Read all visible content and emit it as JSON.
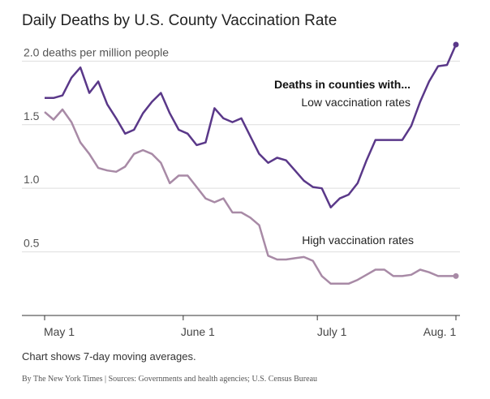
{
  "chart_data": {
    "type": "line",
    "title": "Daily Deaths by U.S. County Vaccination Rate",
    "annotation": "Deaths in counties with...",
    "note": "Chart shows 7-day moving averages.",
    "source": "By The New York Times | Sources: Governments and health agencies; U.S. Census Bureau",
    "x": [
      0,
      2,
      4,
      6,
      8,
      10,
      12,
      14,
      16,
      18,
      20,
      22,
      24,
      26,
      28,
      30,
      32,
      34,
      36,
      38,
      40,
      42,
      44,
      46,
      48,
      50,
      52,
      54,
      56,
      58,
      60,
      62,
      64,
      66,
      68,
      70,
      72,
      74,
      76,
      78,
      80,
      82,
      84,
      86,
      88,
      90,
      92
    ],
    "series": [
      {
        "name": "Low vaccination rates",
        "color": "#5a3889",
        "values": [
          1.71,
          1.71,
          1.73,
          1.87,
          1.95,
          1.75,
          1.84,
          1.66,
          1.55,
          1.43,
          1.46,
          1.59,
          1.68,
          1.75,
          1.59,
          1.46,
          1.43,
          1.34,
          1.36,
          1.63,
          1.55,
          1.52,
          1.55,
          1.41,
          1.27,
          1.2,
          1.24,
          1.22,
          1.14,
          1.06,
          1.01,
          1.0,
          0.85,
          0.92,
          0.95,
          1.04,
          1.22,
          1.38,
          1.38,
          1.38,
          1.38,
          1.49,
          1.68,
          1.84,
          1.96,
          1.97,
          2.13
        ]
      },
      {
        "name": "High vaccination rates",
        "color": "#a88aa6",
        "values": [
          1.6,
          1.54,
          1.62,
          1.52,
          1.36,
          1.27,
          1.16,
          1.14,
          1.13,
          1.17,
          1.27,
          1.3,
          1.27,
          1.2,
          1.04,
          1.1,
          1.1,
          1.01,
          0.92,
          0.89,
          0.92,
          0.81,
          0.81,
          0.77,
          0.71,
          0.47,
          0.44,
          0.44,
          0.45,
          0.46,
          0.43,
          0.31,
          0.25,
          0.25,
          0.25,
          0.28,
          0.32,
          0.36,
          0.36,
          0.31,
          0.31,
          0.32,
          0.36,
          0.34,
          0.31,
          0.31,
          0.31
        ]
      }
    ],
    "xlim": [
      0,
      92
    ],
    "xticks": [
      {
        "value": 0,
        "label": "May 1"
      },
      {
        "value": 31,
        "label": "June 1"
      },
      {
        "value": 61,
        "label": "July 1"
      },
      {
        "value": 92,
        "label": "Aug. 1"
      }
    ],
    "ylim": [
      0,
      2.2
    ],
    "yticks": [
      0.5,
      {
        "value": 1,
        "label": "1.0"
      },
      1.5,
      {
        "value": 2,
        "label": "2.0 deaths per million people"
      }
    ],
    "grid": true
  }
}
